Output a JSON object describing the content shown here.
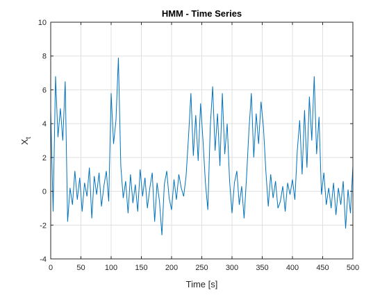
{
  "chart_data": {
    "type": "line",
    "title": "HMM - Time Series",
    "xlabel": "Time [s]",
    "ylabel_main": "X",
    "ylabel_sub": "t",
    "xlim": [
      0,
      500
    ],
    "ylim": [
      -4,
      10
    ],
    "xticks": [
      "0",
      "50",
      "100",
      "150",
      "200",
      "250",
      "300",
      "350",
      "400",
      "450",
      "500"
    ],
    "yticks": [
      "-4",
      "-2",
      "0",
      "2",
      "4",
      "6",
      "8",
      "10"
    ],
    "grid": true,
    "line_color": "#0072BD",
    "series": [
      {
        "x": [
          0,
          4,
          8,
          12,
          16,
          20,
          24,
          28,
          32,
          36,
          40,
          44,
          48,
          52,
          56,
          60,
          64,
          68,
          72,
          76,
          80,
          84,
          88,
          92,
          96,
          100,
          104,
          108,
          112,
          116,
          120,
          124,
          128,
          132,
          136,
          140,
          144,
          148,
          152,
          156,
          160,
          164,
          168,
          172,
          176,
          180,
          184,
          188,
          192,
          196,
          200,
          204,
          208,
          212,
          216,
          220,
          224,
          228,
          232,
          236,
          240,
          244,
          248,
          252,
          256,
          260,
          264,
          268,
          272,
          276,
          280,
          284,
          288,
          292,
          296,
          300,
          304,
          308,
          312,
          316,
          320,
          324,
          328,
          332,
          336,
          340,
          344,
          348,
          352,
          356,
          360,
          364,
          368,
          372,
          376,
          380,
          384,
          388,
          392,
          396,
          400,
          404,
          408,
          412,
          416,
          420,
          424,
          428,
          432,
          436,
          440,
          444,
          448,
          452,
          456,
          460,
          464,
          468,
          472,
          476,
          480,
          484,
          488,
          492,
          496,
          500
        ],
        "y": [
          4.8,
          -1.2,
          6.8,
          3.2,
          4.9,
          3.0,
          6.5,
          -1.8,
          0.2,
          -0.8,
          1.2,
          -0.5,
          0.8,
          -1.2,
          0.5,
          -0.3,
          1.4,
          -1.6,
          0.9,
          -0.2,
          1.1,
          -0.9,
          0.3,
          1.2,
          -0.6,
          5.8,
          2.8,
          4.2,
          7.9,
          1.5,
          -0.4,
          0.6,
          -1.3,
          1.0,
          -0.7,
          0.4,
          -1.2,
          1.3,
          -0.3,
          0.8,
          -1.0,
          0.2,
          1.1,
          -1.8,
          0.5,
          -0.6,
          -2.6,
          0.4,
          1.2,
          -0.4,
          -1.1,
          0.7,
          -0.5,
          1.0,
          0.2,
          -0.3,
          0.9,
          3.2,
          5.8,
          2.1,
          4.5,
          1.8,
          5.2,
          3.0,
          0.5,
          -1.1,
          3.8,
          6.2,
          2.4,
          4.6,
          1.5,
          5.8,
          2.2,
          4.0,
          0.6,
          -1.3,
          0.5,
          1.2,
          -0.8,
          0.3,
          -1.6,
          0.8,
          3.6,
          5.8,
          2.0,
          4.6,
          2.8,
          5.3,
          3.8,
          1.2,
          -0.9,
          1.0,
          -0.4,
          0.6,
          -1.0,
          -0.6,
          0.3,
          -1.2,
          0.5,
          -0.2,
          0.7,
          -0.5,
          2.4,
          4.2,
          1.0,
          4.8,
          1.4,
          5.6,
          3.0,
          6.8,
          2.2,
          4.4,
          -0.2,
          1.1,
          -0.8,
          0.2,
          -1.0,
          0.5,
          -1.4,
          0.2,
          -0.8,
          0.6,
          -2.2,
          0.1,
          -1.3,
          1.5
        ]
      }
    ]
  }
}
